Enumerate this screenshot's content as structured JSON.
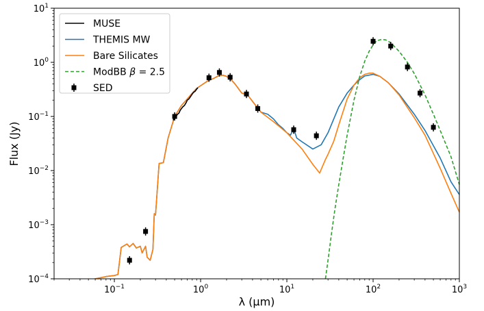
{
  "chart_data": {
    "type": "line",
    "xscale": "log",
    "yscale": "log",
    "xlim": [
      0.02,
      1000
    ],
    "ylim": [
      0.0001,
      10
    ],
    "xlabel": "λ (μm)",
    "ylabel": "Flux (Jy)",
    "x_tick_values": [
      0.1,
      1,
      10,
      100,
      1000
    ],
    "x_tick_labels": [
      {
        "base": "10",
        "exp": "−1"
      },
      {
        "base": "10",
        "exp": "0"
      },
      {
        "base": "10",
        "exp": "1"
      },
      {
        "base": "10",
        "exp": "2"
      },
      {
        "base": "10",
        "exp": "3"
      }
    ],
    "y_tick_values": [
      0.0001,
      0.001,
      0.01,
      0.1,
      1,
      10
    ],
    "y_tick_labels": [
      {
        "base": "10",
        "exp": "−4"
      },
      {
        "base": "10",
        "exp": "−3"
      },
      {
        "base": "10",
        "exp": "−2"
      },
      {
        "base": "10",
        "exp": "−1"
      },
      {
        "base": "10",
        "exp": "0"
      },
      {
        "base": "10",
        "exp": "1"
      }
    ],
    "legend_position": "top-left",
    "series": [
      {
        "name": "THEMIS MW",
        "color": "#1f77b4",
        "style": "solid",
        "points": [
          [
            0.04,
            9e-05
          ],
          [
            0.06,
            0.0001
          ],
          [
            0.08,
            0.00011
          ],
          [
            0.1,
            0.000115
          ],
          [
            0.11,
            0.00012
          ],
          [
            0.12,
            0.00038
          ],
          [
            0.14,
            0.00044
          ],
          [
            0.15,
            0.00039
          ],
          [
            0.165,
            0.00045
          ],
          [
            0.18,
            0.00037
          ],
          [
            0.2,
            0.0004
          ],
          [
            0.21,
            0.0003
          ],
          [
            0.23,
            0.0004
          ],
          [
            0.24,
            0.00025
          ],
          [
            0.26,
            0.00022
          ],
          [
            0.28,
            0.00035
          ],
          [
            0.29,
            0.0016
          ],
          [
            0.3,
            0.0015
          ],
          [
            0.33,
            0.0135
          ],
          [
            0.37,
            0.014
          ],
          [
            0.42,
            0.04
          ],
          [
            0.5,
            0.1
          ],
          [
            0.6,
            0.16
          ],
          [
            0.7,
            0.21
          ],
          [
            0.8,
            0.27
          ],
          [
            0.9,
            0.33
          ],
          [
            1.0,
            0.37
          ],
          [
            1.2,
            0.45
          ],
          [
            1.4,
            0.5
          ],
          [
            1.6,
            0.56
          ],
          [
            1.8,
            0.58
          ],
          [
            2.0,
            0.55
          ],
          [
            2.2,
            0.5
          ],
          [
            2.5,
            0.4
          ],
          [
            3.0,
            0.27
          ],
          [
            3.5,
            0.25
          ],
          [
            4.0,
            0.19
          ],
          [
            5.0,
            0.12
          ],
          [
            6.0,
            0.11
          ],
          [
            7.0,
            0.09
          ],
          [
            8.0,
            0.07
          ],
          [
            9.0,
            0.06
          ],
          [
            10.0,
            0.05
          ],
          [
            11.0,
            0.045
          ],
          [
            12.0,
            0.06
          ],
          [
            13.0,
            0.04
          ],
          [
            15.0,
            0.034
          ],
          [
            20.0,
            0.025
          ],
          [
            25.0,
            0.03
          ],
          [
            30.0,
            0.05
          ],
          [
            35.0,
            0.09
          ],
          [
            40.0,
            0.15
          ],
          [
            50.0,
            0.27
          ],
          [
            60.0,
            0.38
          ],
          [
            70.0,
            0.48
          ],
          [
            80.0,
            0.56
          ],
          [
            100.0,
            0.6
          ],
          [
            120.0,
            0.55
          ],
          [
            150.0,
            0.42
          ],
          [
            200.0,
            0.26
          ],
          [
            300.0,
            0.11
          ],
          [
            400.0,
            0.055
          ],
          [
            600.0,
            0.017
          ],
          [
            800.0,
            0.0062
          ],
          [
            1000.0,
            0.0036
          ]
        ]
      },
      {
        "name": "Bare Silicates",
        "color": "#ff7f0e",
        "style": "solid",
        "points": [
          [
            0.04,
            9e-05
          ],
          [
            0.06,
            0.0001
          ],
          [
            0.08,
            0.00011
          ],
          [
            0.1,
            0.000115
          ],
          [
            0.11,
            0.00012
          ],
          [
            0.12,
            0.00038
          ],
          [
            0.14,
            0.00044
          ],
          [
            0.15,
            0.00039
          ],
          [
            0.165,
            0.00045
          ],
          [
            0.18,
            0.00037
          ],
          [
            0.2,
            0.0004
          ],
          [
            0.21,
            0.0003
          ],
          [
            0.23,
            0.0004
          ],
          [
            0.24,
            0.00025
          ],
          [
            0.26,
            0.00022
          ],
          [
            0.28,
            0.00035
          ],
          [
            0.29,
            0.0016
          ],
          [
            0.3,
            0.0015
          ],
          [
            0.33,
            0.0135
          ],
          [
            0.37,
            0.014
          ],
          [
            0.42,
            0.04
          ],
          [
            0.5,
            0.1
          ],
          [
            0.6,
            0.16
          ],
          [
            0.7,
            0.21
          ],
          [
            0.8,
            0.27
          ],
          [
            0.9,
            0.33
          ],
          [
            1.0,
            0.37
          ],
          [
            1.2,
            0.45
          ],
          [
            1.4,
            0.5
          ],
          [
            1.6,
            0.56
          ],
          [
            1.8,
            0.58
          ],
          [
            2.0,
            0.55
          ],
          [
            2.2,
            0.5
          ],
          [
            2.5,
            0.4
          ],
          [
            3.0,
            0.27
          ],
          [
            3.5,
            0.25
          ],
          [
            4.0,
            0.19
          ],
          [
            5.0,
            0.12
          ],
          [
            7.0,
            0.08
          ],
          [
            10.0,
            0.05
          ],
          [
            15.0,
            0.025
          ],
          [
            20.0,
            0.013
          ],
          [
            24.0,
            0.009
          ],
          [
            28.0,
            0.016
          ],
          [
            30.0,
            0.02
          ],
          [
            35.0,
            0.035
          ],
          [
            40.0,
            0.07
          ],
          [
            50.0,
            0.21
          ],
          [
            60.0,
            0.38
          ],
          [
            70.0,
            0.52
          ],
          [
            80.0,
            0.6
          ],
          [
            90.0,
            0.63
          ],
          [
            100.0,
            0.63
          ],
          [
            120.0,
            0.55
          ],
          [
            150.0,
            0.42
          ],
          [
            200.0,
            0.25
          ],
          [
            300.0,
            0.095
          ],
          [
            400.0,
            0.045
          ],
          [
            600.0,
            0.011
          ],
          [
            800.0,
            0.0038
          ],
          [
            1000.0,
            0.0017
          ]
        ]
      },
      {
        "name": "MUSE",
        "color": "#000000",
        "style": "solid",
        "points": [
          [
            0.48,
            0.085
          ],
          [
            0.5,
            0.095
          ],
          [
            0.52,
            0.1
          ],
          [
            0.54,
            0.11
          ],
          [
            0.56,
            0.115
          ],
          [
            0.58,
            0.13
          ],
          [
            0.6,
            0.14
          ],
          [
            0.62,
            0.15
          ],
          [
            0.65,
            0.16
          ],
          [
            0.68,
            0.18
          ],
          [
            0.7,
            0.2
          ],
          [
            0.73,
            0.21
          ],
          [
            0.76,
            0.23
          ],
          [
            0.8,
            0.26
          ],
          [
            0.83,
            0.28
          ],
          [
            0.86,
            0.29
          ],
          [
            0.9,
            0.32
          ],
          [
            0.93,
            0.34
          ]
        ]
      },
      {
        "name": "ModBB β = 2.5",
        "color": "#2ca02c",
        "style": "dashed",
        "points": [
          [
            28.0,
            0.0001
          ],
          [
            30.0,
            0.00022
          ],
          [
            33.0,
            0.0007
          ],
          [
            36.0,
            0.0019
          ],
          [
            40.0,
            0.0055
          ],
          [
            45.0,
            0.017
          ],
          [
            50.0,
            0.045
          ],
          [
            60.0,
            0.2
          ],
          [
            70.0,
            0.55
          ],
          [
            80.0,
            1.05
          ],
          [
            90.0,
            1.6
          ],
          [
            100.0,
            2.1
          ],
          [
            110.0,
            2.5
          ],
          [
            125.0,
            2.65
          ],
          [
            140.0,
            2.6
          ],
          [
            160.0,
            2.3
          ],
          [
            200.0,
            1.6
          ],
          [
            250.0,
            1.0
          ],
          [
            300.0,
            0.62
          ],
          [
            400.0,
            0.25
          ],
          [
            500.0,
            0.11
          ],
          [
            600.0,
            0.055
          ],
          [
            800.0,
            0.018
          ],
          [
            1000.0,
            0.0055
          ]
        ]
      },
      {
        "name": "SED",
        "color": "#000000",
        "style": "markers",
        "points": [
          [
            0.15,
            0.00022
          ],
          [
            0.23,
            0.00075
          ],
          [
            0.5,
            0.1
          ],
          [
            1.25,
            0.52
          ],
          [
            1.65,
            0.65
          ],
          [
            2.2,
            0.53
          ],
          [
            3.4,
            0.26
          ],
          [
            4.6,
            0.14
          ],
          [
            12.0,
            0.057
          ],
          [
            22.0,
            0.044
          ],
          [
            100.0,
            2.45
          ],
          [
            160.0,
            2.0
          ],
          [
            250.0,
            0.82
          ],
          [
            350.0,
            0.27
          ],
          [
            500.0,
            0.063
          ]
        ]
      }
    ],
    "legend": [
      {
        "label": "MUSE",
        "color": "#000000",
        "style": "solid"
      },
      {
        "label": "THEMIS MW",
        "color": "#1f77b4",
        "style": "solid"
      },
      {
        "label": "Bare Silicates",
        "color": "#ff7f0e",
        "style": "solid"
      },
      {
        "label": "ModBB",
        "label_math": "β",
        "label_suffix": " = 2.5",
        "color": "#2ca02c",
        "style": "dashed"
      },
      {
        "label": "SED",
        "color": "#000000",
        "style": "markers"
      }
    ]
  }
}
